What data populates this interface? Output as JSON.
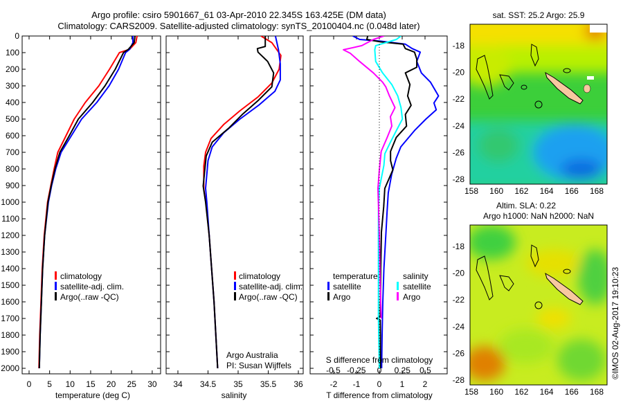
{
  "title": {
    "line1": "Argo profile: csiro 5901667_61 03-Apr-2010 22.345S 163.425E (DM data)",
    "line2": "Climatology: CARS2009. Satellite-adjusted climatology: synTS_20100404.nc (0.048d later)"
  },
  "colors": {
    "climatology": "#ff0000",
    "satellite": "#0000ff",
    "argo": "#000000",
    "sal_satellite": "#00ffff",
    "sal_argo": "#ff00ff"
  },
  "depth_ticks": [
    0,
    100,
    200,
    300,
    400,
    500,
    600,
    700,
    800,
    900,
    1000,
    1100,
    1200,
    1300,
    1400,
    1500,
    1600,
    1700,
    1800,
    1900,
    2000
  ],
  "chart_data": [
    {
      "type": "line",
      "name": "temperature-profile",
      "xlabel": "temperature (deg C)",
      "ylabel": "depth",
      "xlim": [
        -2,
        31.7
      ],
      "ylim": [
        2030,
        0
      ],
      "xticks": [
        0,
        5,
        10,
        15,
        20,
        25,
        30
      ],
      "legend": [
        "climatology",
        "satellite-adj. clim.",
        "Argo(..raw -QC)"
      ],
      "legend_position": "lower-center",
      "series": [
        {
          "name": "climatology",
          "depth": [
            0,
            40,
            80,
            100,
            200,
            300,
            400,
            500,
            600,
            700,
            800,
            900,
            1000,
            1200,
            1400,
            1600,
            1800,
            2000
          ],
          "values": [
            26.3,
            26,
            24.5,
            22,
            19.6,
            17,
            13.7,
            11,
            9,
            7,
            6.1,
            5.3,
            4.5,
            3.7,
            3.2,
            2.9,
            2.6,
            2.4
          ]
        },
        {
          "name": "satellite-adj. clim.",
          "depth": [
            0,
            40,
            80,
            100,
            200,
            300,
            400,
            500,
            600,
            700,
            800,
            900,
            1000,
            1200,
            1400,
            1600,
            1800,
            2000
          ],
          "values": [
            25.3,
            25.3,
            24.5,
            23.5,
            21.8,
            19.5,
            16.5,
            12.8,
            10.3,
            7.8,
            6.5,
            5.5,
            4.7,
            3.8,
            3.3,
            3,
            2.7,
            2.5
          ]
        },
        {
          "name": "Argo(..raw -QC)",
          "depth": [
            0,
            40,
            80,
            100,
            200,
            300,
            400,
            500,
            600,
            700,
            800,
            900,
            1000,
            1200,
            1400,
            1600,
            1800,
            2000
          ],
          "values": [
            25.8,
            25.6,
            24.2,
            23,
            21,
            18.5,
            15.5,
            12,
            9.8,
            7.5,
            6.3,
            5.4,
            4.6,
            3.8,
            3.3,
            3,
            2.7,
            2.5
          ]
        }
      ]
    },
    {
      "type": "line",
      "name": "salinity-profile",
      "xlabel": "salinity",
      "ylabel": "depth",
      "xlim": [
        33.8,
        36.1
      ],
      "ylim": [
        2030,
        0
      ],
      "xticks": [
        34,
        34.5,
        35,
        35.5,
        36
      ],
      "legend": [
        "climatology",
        "satellite-adj. clim.",
        "Argo(..raw -QC)"
      ],
      "annotation": [
        "Argo Australia",
        "PI: Susan Wijffels"
      ],
      "series": [
        {
          "name": "climatology",
          "depth": [
            0,
            40,
            117,
            200,
            283,
            367,
            450,
            533,
            617,
            700,
            783,
            922,
            1019,
            1200,
            1400,
            1600,
            1800,
            2000
          ],
          "values": [
            35.38,
            35.56,
            35.71,
            35.68,
            35.56,
            35.33,
            35.03,
            34.76,
            34.55,
            34.46,
            34.43,
            34.43,
            34.47,
            34.52,
            34.56,
            34.6,
            34.63,
            34.66
          ]
        },
        {
          "name": "satellite-adj. clim.",
          "depth": [
            0,
            83,
            167,
            264,
            333,
            417,
            500,
            583,
            667,
            750,
            917,
            1000,
            1200,
            1400,
            1600,
            1800,
            2000
          ],
          "values": [
            35.62,
            35.67,
            35.7,
            35.7,
            35.61,
            35.34,
            35.03,
            34.76,
            34.57,
            34.5,
            34.46,
            34.48,
            34.52,
            34.56,
            34.6,
            34.63,
            34.66
          ]
        },
        {
          "name": "Argo(..raw -QC)",
          "depth": [
            0,
            63,
            76,
            97,
            153,
            222,
            306,
            389,
            472,
            556,
            639,
            722,
            903,
            1000,
            1200,
            1400,
            1600,
            1800,
            2000
          ],
          "values": [
            35.45,
            35.45,
            35.32,
            35.33,
            35.49,
            35.59,
            35.56,
            35.33,
            35.07,
            34.84,
            34.57,
            34.47,
            34.42,
            34.46,
            34.52,
            34.56,
            34.6,
            34.63,
            34.66
          ]
        }
      ]
    },
    {
      "type": "line",
      "name": "difference-profile",
      "xlabel": "T difference from climatology",
      "x2label": "S difference from climatology",
      "xlim": [
        -3.2,
        2.9
      ],
      "ylim": [
        2030,
        0
      ],
      "xticks": [
        -2,
        -1,
        0,
        1,
        2
      ],
      "xtick_labels": [
        "-2",
        "-1",
        "0",
        "1",
        "2"
      ],
      "x2ticks": [
        -0.5,
        -0.25,
        0,
        0.25,
        0.5
      ],
      "x2tick_labels": [
        "-0.5",
        "-0.25",
        "0",
        "0.25",
        "0.5"
      ],
      "legend_titles": [
        "temperature",
        "salinity"
      ],
      "legend": [
        "satellite",
        "Argo",
        "satellite",
        "Argo"
      ],
      "series": [
        {
          "name": "temperature satellite",
          "var": "T",
          "depth": [
            0,
            21,
            31,
            49,
            76,
            97,
            153,
            222,
            278,
            361,
            403,
            444,
            500,
            569,
            667,
            736,
            833,
            944,
            1056,
            1181,
            1400,
            1600,
            1800,
            2000
          ],
          "values": [
            -1.16,
            -0.86,
            0.04,
            1.14,
            1.44,
            1.79,
            1.64,
            1.84,
            2.24,
            2.59,
            2.39,
            2.49,
            2.04,
            1.54,
            0.94,
            0.74,
            0.54,
            0.39,
            0.34,
            0.29,
            0.2,
            0.15,
            0.12,
            0.1
          ]
        },
        {
          "name": "temperature Argo",
          "var": "T",
          "depth": [
            0,
            21,
            35,
            49,
            76,
            97,
            139,
            188,
            222,
            292,
            361,
            417,
            472,
            542,
            611,
            694,
            750,
            806,
            917,
            1028,
            1181,
            1400,
            1600,
            1690,
            1700,
            1710,
            1800,
            2000
          ],
          "values": [
            -0.51,
            -0.55,
            0.04,
            1.04,
            1.14,
            1.54,
            1.64,
            1.64,
            1.14,
            1.34,
            1.24,
            1.39,
            1.14,
            1.19,
            0.74,
            0.49,
            0.49,
            0.59,
            0.24,
            0.19,
            0.09,
            0.06,
            0.05,
            0.04,
            -0.12,
            0.04,
            0.05,
            0.05
          ]
        },
        {
          "name": "salinity satellite",
          "var": "S",
          "depth": [
            0,
            21,
            58,
            83,
            153,
            222,
            292,
            361,
            431,
            500,
            569,
            639,
            708,
            778,
            917,
            1056,
            1400,
            1700,
            2000
          ],
          "values": [
            0.235,
            0.185,
            -0.04,
            -0.05,
            -0.04,
            0.035,
            0.135,
            0.2,
            0.235,
            0.25,
            0.185,
            0.12,
            0.06,
            0.05,
            0,
            -0.01,
            -0.01,
            -0.01,
            0
          ]
        },
        {
          "name": "salinity Argo",
          "var": "S",
          "depth": [
            0,
            21,
            58,
            83,
            104,
            153,
            222,
            278,
            306,
            361,
            431,
            486,
            542,
            611,
            694,
            806,
            917,
            1200,
            1500,
            1700
          ],
          "values": [
            0.05,
            -0.065,
            -0.19,
            -0.39,
            -0.315,
            -0.215,
            -0.065,
            0.035,
            0.07,
            0.11,
            0.17,
            0.12,
            0.135,
            0.085,
            0.02,
            0,
            -0.015,
            0,
            0.01,
            0.02
          ]
        }
      ]
    }
  ],
  "maps": [
    {
      "title": "sat. SST: 25.2 Argo: 25.9",
      "lat_ticks": [
        "-18",
        "-20",
        "-22",
        "-24",
        "-26",
        "-28"
      ],
      "lon_ticks": [
        "158",
        "160",
        "162",
        "164",
        "166",
        "168"
      ]
    },
    {
      "title1": "Altim. SLA: 0.22",
      "title2": "Argo h1000: NaN h2000: NaN",
      "lat_ticks": [
        "-18",
        "-20",
        "-22",
        "-24",
        "-26",
        "-28"
      ],
      "lon_ticks": [
        "158",
        "160",
        "162",
        "164",
        "166",
        "168"
      ]
    }
  ],
  "profile_location": {
    "lat": -22.345,
    "lon": 163.425
  },
  "credit": "©IMOS 02-Aug-2017 19:10:23"
}
